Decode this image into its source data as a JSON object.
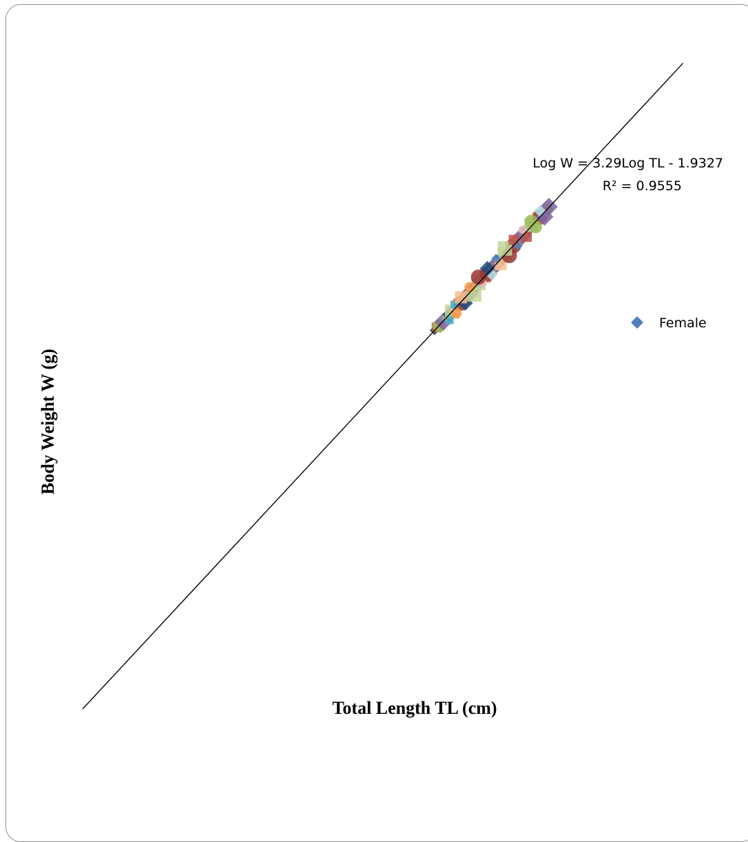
{
  "chart_data": {
    "type": "scatter",
    "xlabel": "Total Length TL (cm)",
    "ylabel": "Body Weight W (g)",
    "legend": {
      "entries": [
        "Female"
      ],
      "placement": "right",
      "marker": "diamond",
      "color": "#4f81bd"
    },
    "trendline": {
      "type": "linear",
      "slope": 3.29,
      "intercept": -1.9327,
      "equation": "Log W = 3.29Log TL - 1.9327",
      "r2_label": "R² = 0.9555",
      "color": "#000000"
    },
    "axes": {
      "xlim": [
        1.0,
        2.4
      ],
      "ylim": [
        1.4,
        6.0
      ],
      "grid": false,
      "ticks_shown": false
    },
    "series": [
      {
        "name": "Female",
        "marker": "diamond",
        "color": "#4f81bd",
        "points": [
          [
            1.8,
            3.99
          ],
          [
            1.805,
            4.01
          ],
          [
            1.81,
            4.02
          ],
          [
            1.82,
            4.05
          ],
          [
            1.825,
            4.08
          ],
          [
            1.83,
            4.09
          ],
          [
            1.835,
            4.1
          ],
          [
            1.84,
            4.12
          ],
          [
            1.845,
            4.13
          ],
          [
            1.85,
            4.15
          ],
          [
            1.855,
            4.17
          ],
          [
            1.86,
            4.18
          ],
          [
            1.865,
            4.2
          ],
          [
            1.87,
            4.21
          ],
          [
            1.875,
            4.23
          ],
          [
            1.88,
            4.25
          ],
          [
            1.885,
            4.26
          ],
          [
            1.89,
            4.28
          ],
          [
            1.895,
            4.3
          ],
          [
            1.9,
            4.32
          ],
          [
            1.905,
            4.33
          ],
          [
            1.91,
            4.35
          ],
          [
            1.915,
            4.36
          ],
          [
            1.92,
            4.38
          ],
          [
            1.925,
            4.4
          ],
          [
            1.93,
            4.42
          ],
          [
            1.935,
            4.43
          ],
          [
            1.94,
            4.45
          ],
          [
            1.945,
            4.46
          ],
          [
            1.95,
            4.48
          ],
          [
            1.955,
            4.5
          ],
          [
            1.96,
            4.52
          ],
          [
            1.965,
            4.53
          ],
          [
            1.97,
            4.55
          ],
          [
            1.975,
            4.57
          ],
          [
            1.98,
            4.58
          ],
          [
            1.985,
            4.6
          ],
          [
            1.99,
            4.62
          ],
          [
            1.995,
            4.63
          ],
          [
            2.0,
            4.65
          ],
          [
            2.005,
            4.67
          ],
          [
            2.01,
            4.68
          ],
          [
            2.015,
            4.7
          ],
          [
            2.02,
            4.72
          ],
          [
            2.025,
            4.73
          ],
          [
            2.03,
            4.75
          ],
          [
            2.035,
            4.77
          ],
          [
            2.04,
            4.78
          ],
          [
            2.045,
            4.8
          ],
          [
            2.05,
            4.82
          ],
          [
            2.055,
            4.83
          ],
          [
            2.06,
            4.85
          ],
          [
            1.835,
            4.06
          ],
          [
            1.85,
            4.11
          ],
          [
            1.87,
            4.18
          ],
          [
            1.89,
            4.24
          ],
          [
            1.91,
            4.32
          ],
          [
            1.93,
            4.38
          ],
          [
            1.95,
            4.45
          ],
          [
            1.97,
            4.51
          ],
          [
            1.99,
            4.58
          ],
          [
            2.01,
            4.64
          ],
          [
            2.03,
            4.71
          ],
          [
            2.05,
            4.78
          ],
          [
            1.845,
            4.17
          ],
          [
            1.88,
            4.29
          ],
          [
            1.92,
            4.42
          ],
          [
            1.96,
            4.56
          ],
          [
            2.0,
            4.69
          ],
          [
            2.04,
            4.82
          ],
          [
            1.86,
            4.22
          ],
          [
            1.9,
            4.36
          ],
          [
            1.94,
            4.49
          ],
          [
            1.98,
            4.62
          ],
          [
            2.02,
            4.75
          ]
        ]
      }
    ]
  }
}
